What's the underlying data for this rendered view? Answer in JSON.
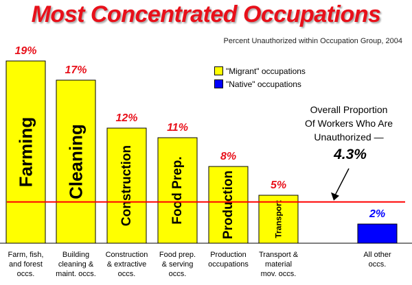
{
  "title": "Most Concentrated Occupations",
  "subtitle": "Percent Unauthorized within Occupation Group, 2004",
  "legend": {
    "migrant_label": "\"Migrant\" occupations",
    "native_label": "\"Native\" occupations",
    "placement": "top-right"
  },
  "annotation": {
    "lines": [
      "Overall Proportion",
      "Of Workers Who Are",
      "Unauthorized —"
    ],
    "value": "4.3%"
  },
  "colors": {
    "title": "#e8101a",
    "migrant": "#ffff00",
    "native": "#0000ff",
    "reference_line": "#ff0000",
    "value_labels": "#e8101a"
  },
  "chart_data": {
    "type": "bar",
    "ylim": [
      0,
      20
    ],
    "grid": false,
    "reference_line": {
      "value": 4.3,
      "label": "4.3%"
    },
    "categories": [
      {
        "label_lines": [
          "Farm, fish,",
          "and forest",
          "occs."
        ],
        "bar_label": "Farming",
        "value": 19,
        "value_label": "19%",
        "group": "migrant"
      },
      {
        "label_lines": [
          "Building",
          "cleaning &",
          "maint. occs."
        ],
        "bar_label": "Cleaning",
        "value": 17,
        "value_label": "17%",
        "group": "migrant"
      },
      {
        "label_lines": [
          "Construction",
          "& extractive",
          "occs."
        ],
        "bar_label": "Construction",
        "value": 12,
        "value_label": "12%",
        "group": "migrant"
      },
      {
        "label_lines": [
          "Food prep.",
          "& serving",
          "occs."
        ],
        "bar_label": "Food Prep.",
        "value": 11,
        "value_label": "11%",
        "group": "migrant"
      },
      {
        "label_lines": [
          "Production",
          "occupations"
        ],
        "bar_label": "Production",
        "value": 8,
        "value_label": "8%",
        "group": "migrant"
      },
      {
        "label_lines": [
          "Transport &",
          "material",
          "mov. occs."
        ],
        "bar_label": "Transport",
        "value": 5,
        "value_label": "5%",
        "group": "migrant"
      },
      {
        "label_lines": [
          "All other",
          "occs."
        ],
        "bar_label": "",
        "value": 2,
        "value_label": "2%",
        "group": "native"
      }
    ]
  }
}
